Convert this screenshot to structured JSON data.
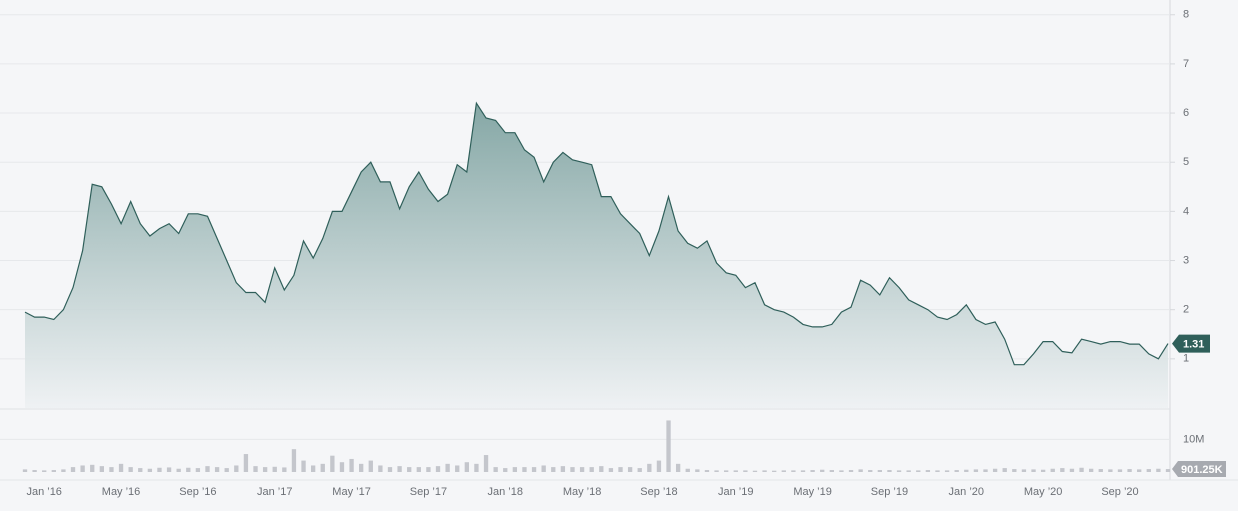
{
  "chart_data": [
    {
      "type": "area",
      "series": [
        {
          "color": "#2f5f5a",
          "values": [
            1.95,
            1.85,
            1.85,
            1.8,
            2.0,
            2.45,
            3.2,
            4.55,
            4.5,
            4.15,
            3.75,
            4.2,
            3.75,
            3.5,
            3.65,
            3.75,
            3.55,
            3.95,
            3.95,
            3.9,
            3.45,
            3.0,
            2.55,
            2.35,
            2.35,
            2.15,
            2.85,
            2.4,
            2.7,
            3.4,
            3.05,
            3.45,
            4.0,
            4.0,
            4.4,
            4.8,
            5.0,
            4.6,
            4.6,
            4.05,
            4.5,
            4.8,
            4.45,
            4.2,
            4.35,
            4.95,
            4.8,
            6.2,
            5.9,
            5.85,
            5.6,
            5.6,
            5.25,
            5.1,
            4.6,
            5.0,
            5.2,
            5.05,
            5.0,
            4.95,
            4.3,
            4.3,
            3.95,
            3.75,
            3.55,
            3.1,
            3.6,
            4.3,
            3.6,
            3.35,
            3.25,
            3.4,
            2.95,
            2.75,
            2.7,
            2.45,
            2.55,
            2.1,
            2.0,
            1.95,
            1.85,
            1.7,
            1.65,
            1.65,
            1.7,
            1.95,
            2.05,
            2.6,
            2.5,
            2.3,
            2.65,
            2.45,
            2.2,
            2.1,
            2.0,
            1.85,
            1.8,
            1.9,
            2.1,
            1.8,
            1.7,
            1.75,
            1.4,
            0.88,
            0.88,
            1.1,
            1.35,
            1.35,
            1.15,
            1.12,
            1.4,
            1.35,
            1.3,
            1.35,
            1.35,
            1.3,
            1.3,
            1.1,
            1.0,
            1.31
          ]
        }
      ],
      "ylim": [
        0,
        8.3
      ],
      "yticks": [
        1,
        2,
        3,
        4,
        5,
        6,
        7,
        8
      ],
      "grid": true
    },
    {
      "type": "bar",
      "color": "#c4c6cc",
      "categories": [
        null,
        null,
        "Jan ’16",
        null,
        null,
        null,
        null,
        null,
        null,
        null,
        "May ’16",
        null,
        null,
        null,
        null,
        null,
        null,
        null,
        "Sep ’16",
        null,
        null,
        null,
        null,
        null,
        null,
        null,
        "Jan ’17",
        null,
        null,
        null,
        null,
        null,
        null,
        null,
        "May ’17",
        null,
        null,
        null,
        null,
        null,
        null,
        null,
        "Sep ’17",
        null,
        null,
        null,
        null,
        null,
        null,
        null,
        "Jan ’18",
        null,
        null,
        null,
        null,
        null,
        null,
        null,
        "May ’18",
        null,
        null,
        null,
        null,
        null,
        null,
        null,
        "Sep ’18",
        null,
        null,
        null,
        null,
        null,
        null,
        null,
        "Jan ’19",
        null,
        null,
        null,
        null,
        null,
        null,
        null,
        "May ’19",
        null,
        null,
        null,
        null,
        null,
        null,
        null,
        "Sep ’19",
        null,
        null,
        null,
        null,
        null,
        null,
        null,
        "Jan ’20",
        null,
        null,
        null,
        null,
        null,
        null,
        null,
        "May ’20",
        null,
        null,
        null,
        null,
        null,
        null,
        null,
        "Sep ’20",
        null,
        null,
        null,
        null,
        null
      ],
      "values": [
        800000,
        600000,
        500000,
        600000,
        800000,
        1500000,
        2000000,
        2200000,
        1800000,
        1500000,
        2500000,
        1500000,
        1200000,
        1000000,
        1300000,
        1400000,
        1000000,
        1300000,
        1200000,
        1800000,
        1500000,
        1200000,
        2000000,
        5500000,
        1800000,
        1500000,
        1600000,
        1400000,
        7000000,
        3500000,
        2000000,
        2500000,
        5000000,
        3000000,
        4000000,
        2500000,
        3500000,
        2000000,
        1500000,
        1800000,
        1500000,
        1500000,
        1500000,
        1800000,
        2500000,
        2000000,
        3000000,
        2500000,
        5200000,
        1500000,
        1200000,
        1500000,
        1500000,
        1500000,
        2000000,
        1500000,
        1800000,
        1500000,
        1500000,
        1500000,
        1800000,
        1200000,
        1500000,
        1500000,
        1200000,
        2500000,
        3500000,
        15800000,
        2500000,
        1000000,
        800000,
        600000,
        500000,
        500000,
        500000,
        500000,
        400000,
        500000,
        400000,
        500000,
        500000,
        500000,
        600000,
        700000,
        600000,
        500000,
        600000,
        800000,
        600000,
        600000,
        600000,
        500000,
        500000,
        500000,
        600000,
        500000,
        500000,
        600000,
        700000,
        800000,
        800000,
        1000000,
        1200000,
        900000,
        800000,
        800000,
        700000,
        1000000,
        1200000,
        1000000,
        1300000,
        1000000,
        900000,
        800000,
        800000,
        900000,
        800000,
        900000,
        1000000,
        901250
      ],
      "value_labels": [
        null,
        null,
        null,
        null,
        null,
        null,
        null,
        null,
        null,
        null,
        null,
        null,
        null,
        null,
        null,
        null,
        null,
        null,
        null,
        null,
        null,
        null,
        null,
        null,
        null,
        null,
        null,
        null,
        null,
        null,
        null,
        null,
        null,
        null,
        null,
        null,
        null,
        null,
        null,
        null,
        null,
        null,
        null,
        null,
        null,
        null,
        null,
        null,
        null,
        null,
        null,
        null,
        null,
        null,
        null,
        null,
        null,
        null,
        null,
        null,
        null,
        null,
        null,
        null,
        null,
        null,
        null,
        null,
        null,
        null,
        null,
        null,
        null,
        null,
        null,
        null,
        null,
        null,
        null,
        null,
        null,
        null,
        null,
        null,
        null,
        null,
        null,
        null,
        null,
        null,
        null,
        null,
        null,
        null,
        null,
        null,
        null,
        null,
        null,
        null,
        null,
        null,
        null,
        null,
        null,
        null,
        null,
        null,
        null,
        null,
        null,
        null,
        null,
        null,
        null,
        null,
        null,
        null,
        null,
        "901.25K"
      ],
      "ylim": [
        0,
        19000000
      ],
      "yticks": [
        {
          "value": 10000000,
          "label": "10M"
        }
      ]
    }
  ]
}
